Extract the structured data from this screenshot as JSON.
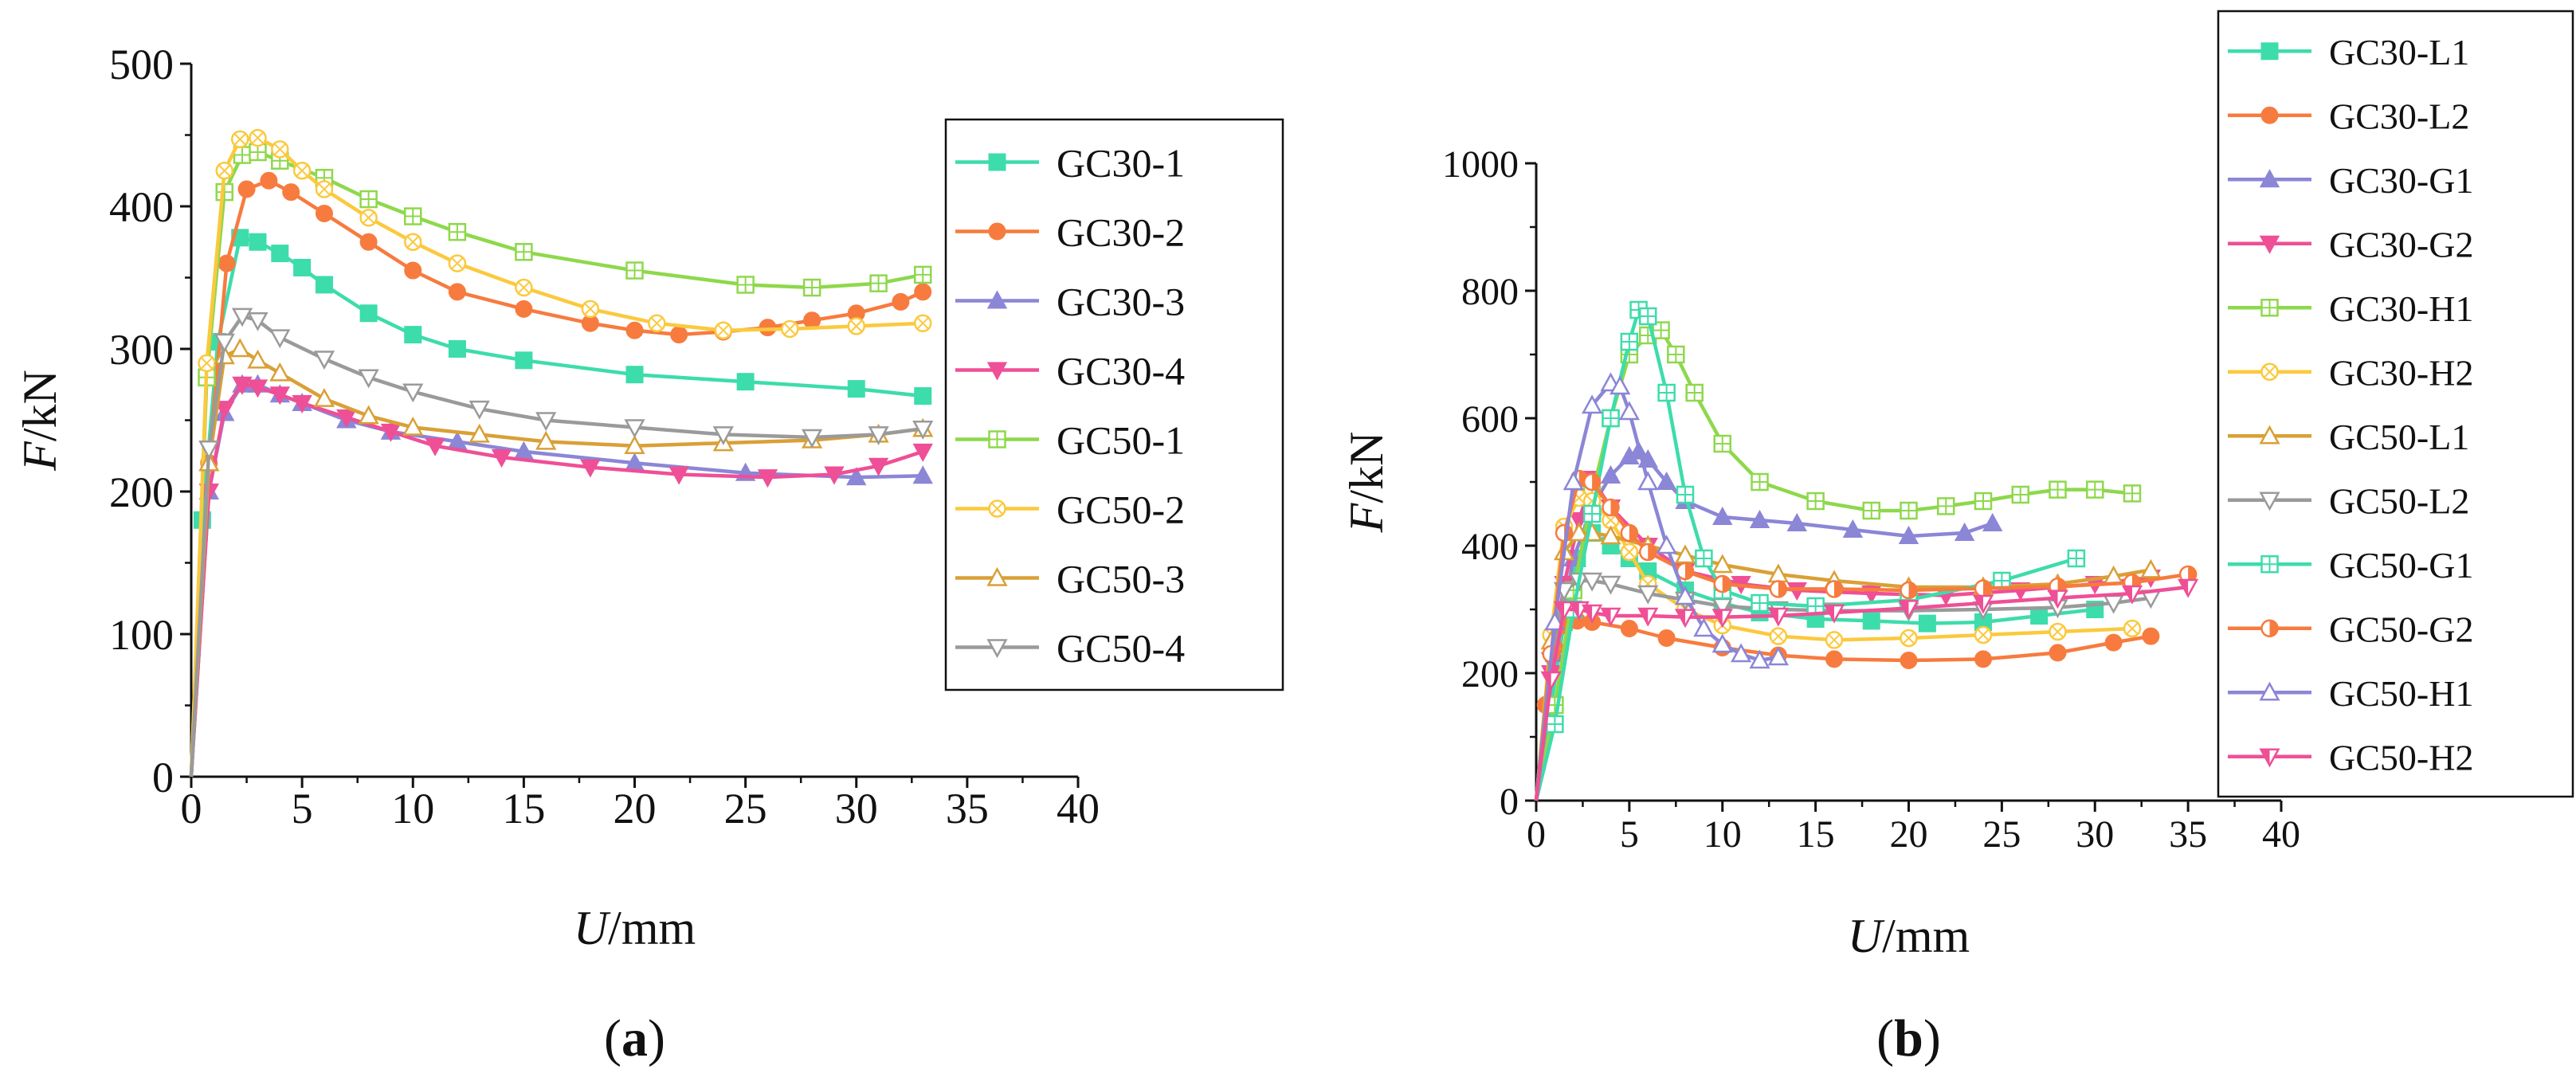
{
  "chart_data": [
    {
      "type": "line",
      "panel_label": "(a)",
      "xlabel_var": "U",
      "xlabel_unit": "/mm",
      "ylabel_var": "F",
      "ylabel_unit": "/kN",
      "xlim": [
        0,
        40
      ],
      "ylim": [
        0,
        500
      ],
      "xticks": [
        0,
        5,
        10,
        15,
        20,
        25,
        30,
        35,
        40
      ],
      "yticks": [
        0,
        100,
        200,
        300,
        400,
        500
      ],
      "grid": false,
      "legend": "right",
      "series": [
        {
          "name": "GC30-1",
          "color": "#3ddcab",
          "marker": "square",
          "x": [
            0,
            0.5,
            1.2,
            2.2,
            3,
            4,
            5,
            6,
            8,
            10,
            12,
            15,
            20,
            25,
            30,
            33
          ],
          "y": [
            0,
            180,
            305,
            378,
            375,
            367,
            357,
            345,
            325,
            310,
            300,
            292,
            282,
            277,
            272,
            267
          ]
        },
        {
          "name": "GC30-2",
          "color": "#f77b3e",
          "marker": "circle",
          "x": [
            0,
            0.8,
            1.6,
            2.5,
            3.5,
            4.5,
            6,
            8,
            10,
            12,
            15,
            18,
            20,
            22,
            24,
            26,
            28,
            30,
            32,
            33
          ],
          "y": [
            0,
            220,
            360,
            412,
            418,
            410,
            395,
            375,
            355,
            340,
            328,
            318,
            313,
            310,
            312,
            315,
            320,
            325,
            333,
            340
          ]
        },
        {
          "name": "GC30-3",
          "color": "#8b86d6",
          "marker": "triangle-up",
          "x": [
            0,
            0.8,
            1.5,
            2.3,
            3,
            4,
            5,
            7,
            9,
            12,
            15,
            20,
            25,
            30,
            33
          ],
          "y": [
            0,
            200,
            255,
            275,
            275,
            268,
            262,
            250,
            242,
            235,
            228,
            220,
            213,
            210,
            211
          ]
        },
        {
          "name": "GC30-4",
          "color": "#ef4f96",
          "marker": "triangle-down",
          "x": [
            0,
            0.8,
            1.5,
            2.3,
            3,
            4,
            5,
            7,
            9,
            11,
            14,
            18,
            22,
            26,
            29,
            31,
            33
          ],
          "y": [
            0,
            200,
            258,
            275,
            273,
            268,
            262,
            252,
            242,
            232,
            224,
            217,
            212,
            210,
            212,
            218,
            228
          ]
        },
        {
          "name": "GC50-1",
          "color": "#8ed84c",
          "marker": "square-plus",
          "x": [
            0,
            0.7,
            1.5,
            2.3,
            3,
            4,
            6,
            8,
            10,
            12,
            15,
            20,
            25,
            28,
            31,
            33
          ],
          "y": [
            0,
            280,
            410,
            436,
            438,
            432,
            420,
            405,
            393,
            382,
            368,
            355,
            345,
            343,
            346,
            352
          ]
        },
        {
          "name": "GC50-2",
          "color": "#fbc93d",
          "marker": "circle-x",
          "x": [
            0,
            0.7,
            1.5,
            2.2,
            3,
            4,
            5,
            6,
            8,
            10,
            12,
            15,
            18,
            21,
            24,
            27,
            30,
            33
          ],
          "y": [
            0,
            290,
            425,
            447,
            448,
            440,
            425,
            412,
            392,
            375,
            360,
            343,
            328,
            318,
            313,
            314,
            316,
            318
          ]
        },
        {
          "name": "GC50-3",
          "color": "#d9a036",
          "marker": "triangle-up-open",
          "x": [
            0,
            0.8,
            1.5,
            2.2,
            3,
            4,
            6,
            8,
            10,
            13,
            16,
            20,
            24,
            28,
            31,
            33
          ],
          "y": [
            0,
            220,
            295,
            300,
            292,
            283,
            265,
            253,
            245,
            240,
            235,
            232,
            234,
            236,
            240,
            244
          ]
        },
        {
          "name": "GC50-4",
          "color": "#9a9a9a",
          "marker": "triangle-down-open",
          "x": [
            0,
            0.8,
            1.5,
            2.3,
            3,
            4,
            6,
            8,
            10,
            13,
            16,
            20,
            24,
            28,
            31,
            33
          ],
          "y": [
            0,
            230,
            305,
            323,
            320,
            308,
            293,
            280,
            270,
            258,
            250,
            245,
            240,
            238,
            240,
            244
          ]
        }
      ]
    },
    {
      "type": "line",
      "panel_label": "(b)",
      "xlabel_var": "U",
      "xlabel_unit": "/mm",
      "ylabel_var": "F",
      "ylabel_unit": "/kN",
      "xlim": [
        0,
        40
      ],
      "ylim": [
        0,
        1000
      ],
      "xticks": [
        0,
        5,
        10,
        15,
        20,
        25,
        30,
        35,
        40
      ],
      "yticks": [
        0,
        200,
        400,
        600,
        800,
        1000
      ],
      "grid": false,
      "legend": "right",
      "series": [
        {
          "name": "GC30-L1",
          "color": "#3ddcab",
          "marker": "square",
          "x": [
            0,
            0.8,
            1.5,
            2.2,
            3,
            4,
            5,
            6,
            8,
            10,
            12,
            15,
            18,
            21,
            24,
            27,
            30
          ],
          "y": [
            0,
            150,
            280,
            380,
            420,
            400,
            380,
            360,
            330,
            310,
            295,
            285,
            282,
            278,
            280,
            290,
            300
          ]
        },
        {
          "name": "GC30-L2",
          "color": "#f77b3e",
          "marker": "circle",
          "x": [
            0,
            0.5,
            1,
            1.5,
            2.2,
            3,
            5,
            7,
            10,
            13,
            16,
            20,
            24,
            28,
            31,
            33
          ],
          "y": [
            0,
            150,
            240,
            275,
            282,
            280,
            270,
            255,
            240,
            228,
            222,
            220,
            222,
            232,
            248,
            258
          ]
        },
        {
          "name": "GC30-G1",
          "color": "#8b86d6",
          "marker": "triangle-up",
          "x": [
            0,
            1,
            2,
            3,
            4,
            5,
            5.5,
            6,
            7,
            8,
            10,
            12,
            14,
            17,
            20,
            23,
            24.5
          ],
          "y": [
            0,
            230,
            380,
            460,
            510,
            540,
            548,
            535,
            500,
            470,
            445,
            440,
            435,
            425,
            415,
            420,
            435
          ]
        },
        {
          "name": "GC30-G2",
          "color": "#ef4f96",
          "marker": "triangle-down",
          "x": [
            0,
            0.8,
            1.5,
            2.3,
            3,
            4,
            6,
            8,
            11,
            14,
            18,
            22,
            26,
            30,
            33
          ],
          "y": [
            0,
            200,
            340,
            440,
            505,
            460,
            400,
            360,
            340,
            330,
            325,
            322,
            330,
            340,
            350
          ]
        },
        {
          "name": "GC30-H1",
          "color": "#8ed84c",
          "marker": "square-plus",
          "x": [
            0,
            1,
            2,
            3,
            4,
            5,
            6,
            6.7,
            7.5,
            8.5,
            10,
            12,
            15,
            18,
            20,
            22,
            24,
            26,
            28,
            30,
            32
          ],
          "y": [
            0,
            150,
            330,
            480,
            600,
            700,
            730,
            738,
            700,
            640,
            560,
            500,
            470,
            455,
            455,
            462,
            470,
            480,
            488,
            488,
            482
          ]
        },
        {
          "name": "GC30-H2",
          "color": "#fbc93d",
          "marker": "circle-x",
          "x": [
            0,
            0.8,
            1.5,
            2.3,
            3,
            4,
            5,
            6,
            8,
            10,
            13,
            16,
            20,
            24,
            28,
            32
          ],
          "y": [
            0,
            260,
            430,
            475,
            470,
            440,
            390,
            340,
            300,
            275,
            258,
            252,
            255,
            260,
            265,
            270
          ]
        },
        {
          "name": "GC50-L1",
          "color": "#d9a036",
          "marker": "triangle-up-open",
          "x": [
            0,
            0.8,
            1.5,
            2.3,
            3,
            4,
            6,
            8,
            10,
            13,
            16,
            20,
            24,
            28,
            31,
            33
          ],
          "y": [
            0,
            250,
            390,
            420,
            420,
            415,
            400,
            385,
            370,
            355,
            345,
            335,
            335,
            340,
            352,
            362
          ]
        },
        {
          "name": "GC50-L2",
          "color": "#9a9a9a",
          "marker": "triangle-down-open",
          "x": [
            0,
            0.8,
            1.5,
            2.3,
            3,
            4,
            6,
            8,
            10,
            13,
            16,
            20,
            24,
            28,
            31,
            33
          ],
          "y": [
            0,
            220,
            330,
            345,
            345,
            340,
            325,
            315,
            305,
            300,
            298,
            298,
            300,
            303,
            310,
            318
          ]
        },
        {
          "name": "GC50-G1",
          "color": "#3ddcab",
          "marker": "square-plus",
          "x": [
            0,
            1,
            2,
            3,
            4,
            5,
            5.5,
            6,
            7,
            8,
            9,
            10,
            12,
            15,
            20,
            25,
            29
          ],
          "y": [
            0,
            120,
            300,
            450,
            600,
            720,
            770,
            760,
            640,
            480,
            380,
            330,
            310,
            305,
            315,
            345,
            380
          ]
        },
        {
          "name": "GC50-G2",
          "color": "#f77b3e",
          "marker": "circle-half",
          "x": [
            0,
            0.8,
            1.5,
            2.3,
            3,
            4,
            5,
            6,
            8,
            10,
            13,
            16,
            20,
            24,
            28,
            32,
            35
          ],
          "y": [
            0,
            230,
            420,
            505,
            500,
            460,
            420,
            390,
            360,
            340,
            332,
            332,
            330,
            333,
            336,
            342,
            355
          ]
        },
        {
          "name": "GC50-H1",
          "color": "#8b86d6",
          "marker": "triangle-up-open",
          "x": [
            0,
            1,
            2,
            3,
            4,
            4.5,
            5,
            6,
            7,
            8,
            9,
            10,
            11,
            12,
            13
          ],
          "y": [
            0,
            280,
            500,
            620,
            655,
            650,
            610,
            500,
            400,
            320,
            270,
            245,
            230,
            220,
            225
          ]
        },
        {
          "name": "GC50-H2",
          "color": "#ef4f96",
          "marker": "triangle-down-half",
          "x": [
            0,
            0.8,
            1.5,
            2.3,
            3,
            4,
            6,
            8,
            10,
            13,
            16,
            20,
            24,
            28,
            32,
            35
          ],
          "y": [
            0,
            190,
            300,
            300,
            295,
            290,
            290,
            288,
            288,
            290,
            295,
            302,
            310,
            318,
            325,
            335
          ]
        }
      ]
    }
  ]
}
